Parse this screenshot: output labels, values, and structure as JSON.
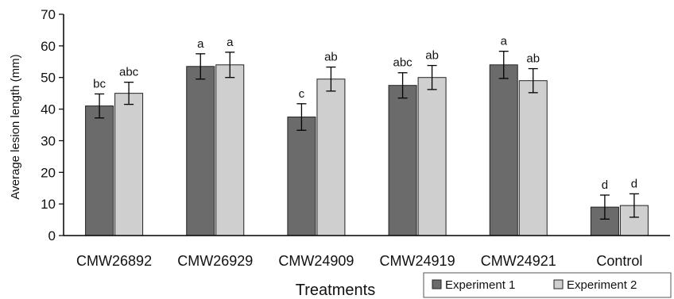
{
  "chart_data": {
    "type": "bar",
    "xlabel": "Treatments",
    "ylabel": "Average lesion length (mm)",
    "ylim": [
      0,
      70
    ],
    "yticks": [
      0,
      10,
      20,
      30,
      40,
      50,
      60,
      70
    ],
    "grid": false,
    "legend_position": "bottom-right",
    "categories": [
      "CMW26892",
      "CMW26929",
      "CMW24909",
      "CMW24919",
      "CMW24921",
      "Control"
    ],
    "series": [
      {
        "name": "Experiment 1",
        "color": "#6b6b6b",
        "values": [
          41,
          53.5,
          37.5,
          47.5,
          54,
          9
        ],
        "errors": [
          3.8,
          4,
          4.2,
          4,
          4.3,
          3.8
        ],
        "letters": [
          "bc",
          "a",
          "c",
          "abc",
          "a",
          "d"
        ]
      },
      {
        "name": "Experiment 2",
        "color": "#cfcfcf",
        "values": [
          45,
          54,
          49.5,
          50,
          49,
          9.5
        ],
        "errors": [
          3.5,
          4,
          3.8,
          3.8,
          3.8,
          3.7
        ],
        "letters": [
          "abc",
          "a",
          "ab",
          "ab",
          "ab",
          "d"
        ]
      }
    ]
  }
}
